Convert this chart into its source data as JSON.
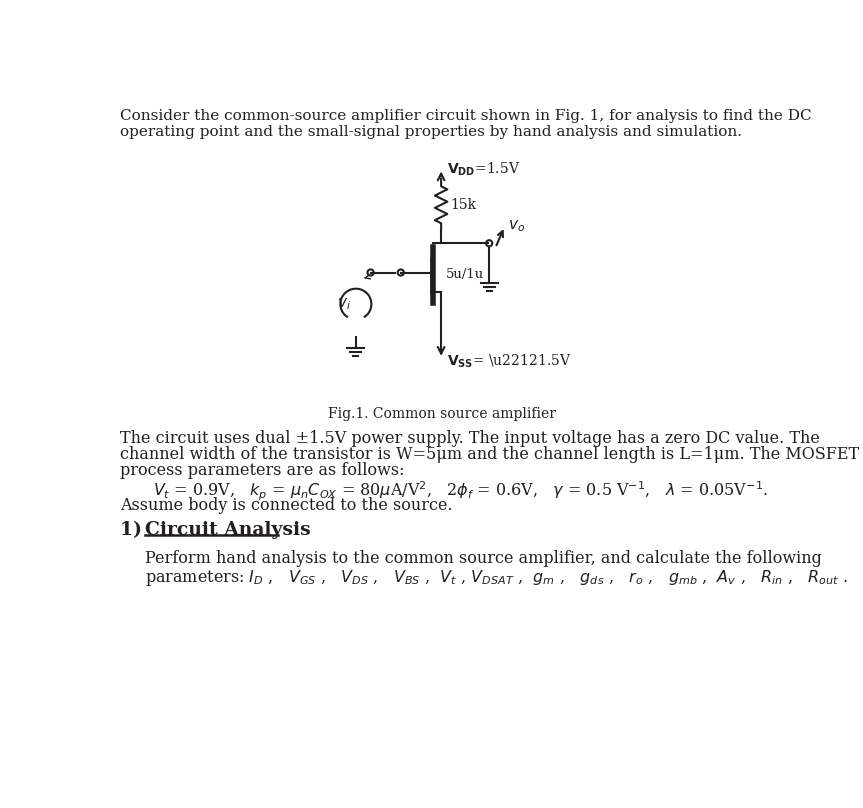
{
  "fig_width": 8.63,
  "fig_height": 8.08,
  "bg_color": "#ffffff",
  "text_color": "#231f20",
  "intro_line1": "Consider the common-source amplifier circuit shown in Fig. 1, for analysis to find the DC",
  "intro_line2": "operating point and the small-signal properties by hand analysis and simulation.",
  "fig_caption": "Fig.1. Common source amplifier",
  "para1_line1": "The circuit uses dual ±1.5V power supply. The input voltage has a zero DC value. The",
  "para1_line2": "channel width of the transistor is W=5μm and the channel length is L=1μm. The MOSFET",
  "para1_line3": "process parameters are as follows:",
  "para1_end": "Assume body is connected to the source.",
  "section_body1": "Perform hand analysis to the common source amplifier, and calculate the following"
}
